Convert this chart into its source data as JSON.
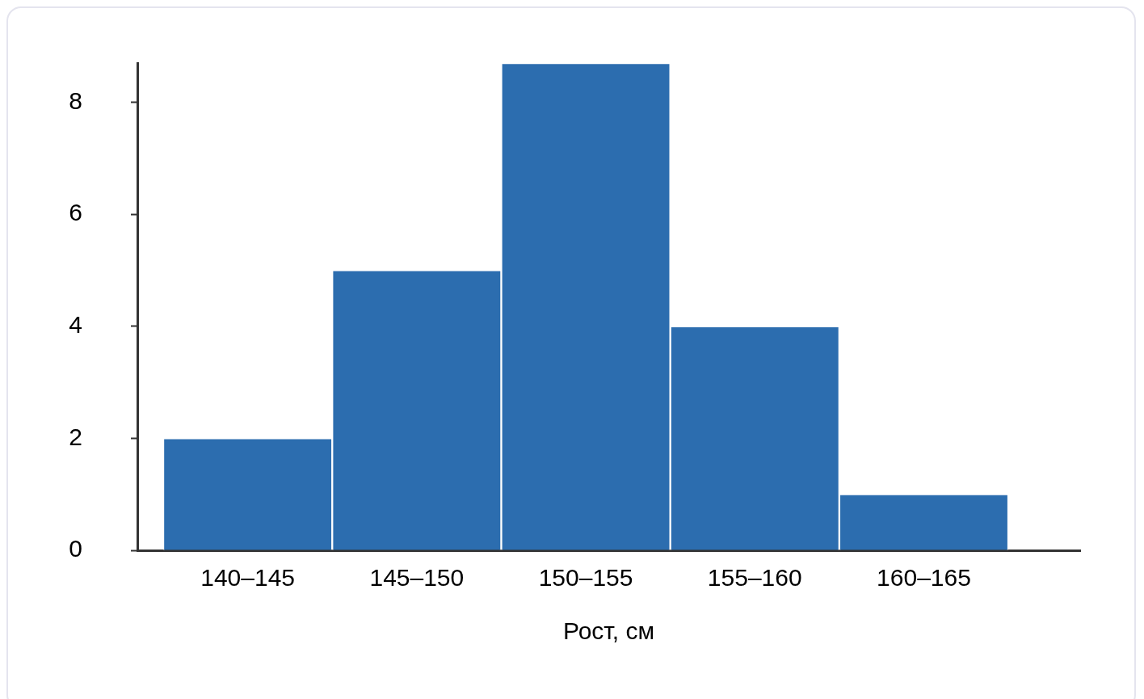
{
  "chart_data": {
    "type": "bar",
    "xlabel": "Рост, см",
    "categories": [
      "140–145",
      "145–150",
      "150–155",
      "155–160",
      "160–165"
    ],
    "values": [
      2,
      5,
      8.7,
      4,
      1
    ],
    "color": "#2c6daf",
    "ylim": [
      0,
      8.7
    ],
    "yticks": [
      0,
      2,
      4,
      6,
      8
    ]
  }
}
